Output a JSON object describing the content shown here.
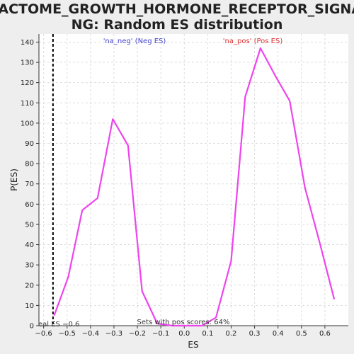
{
  "chart_data": {
    "type": "line",
    "title_lines": [
      "REACTOME_GROWTH_HORMONE_RECEPTOR_SIGNALI",
      "NG: Random ES distribution"
    ],
    "xlabel": "ES",
    "ylabel": "P(ES)",
    "xlim": [
      -0.62,
      0.7
    ],
    "ylim": [
      0,
      144
    ],
    "x_ticks": [
      -0.6,
      -0.5,
      -0.4,
      -0.3,
      -0.2,
      -0.1,
      0.0,
      0.1,
      0.2,
      0.3,
      0.4,
      0.5,
      0.6
    ],
    "x_tick_labels": [
      "−0.6",
      "−0.5",
      "−0.4",
      "−0.3",
      "−0.2",
      "−0.1",
      "0.0",
      "0.1",
      "0.2",
      "0.3",
      "0.4",
      "0.5",
      "0.6"
    ],
    "y_ticks": [
      0,
      10,
      20,
      30,
      40,
      50,
      60,
      70,
      80,
      90,
      100,
      110,
      120,
      130,
      140
    ],
    "y_tick_labels": [
      "0",
      "10",
      "20",
      "30",
      "40",
      "50",
      "60",
      "70",
      "80",
      "90",
      "100",
      "110",
      "120",
      "130",
      "140"
    ],
    "grid": true,
    "series": [
      {
        "color": "#ee44ee",
        "x": [
          -0.555,
          -0.495,
          -0.435,
          -0.37,
          -0.305,
          -0.24,
          -0.18,
          -0.115,
          -0.05,
          0.01,
          0.075,
          0.135,
          0.2,
          0.26,
          0.325,
          0.39,
          0.45,
          0.515,
          0.58,
          0.64
        ],
        "y": [
          5,
          24,
          57,
          63,
          102,
          89,
          17,
          1,
          0,
          0,
          0,
          4,
          32,
          113,
          137,
          123,
          111,
          68,
          40,
          13
        ]
      }
    ],
    "actual_es": {
      "x": -0.56,
      "label": "eal ES −0.6",
      "color": "#000000"
    },
    "legend": {
      "neg": {
        "text": "'na_neg' (Neg ES)",
        "color": "#4444cc"
      },
      "pos": {
        "text": "'na_pos' (Pos ES)",
        "color": "#dd3333"
      }
    },
    "footer_text": "Sets with pos scores: 64%"
  }
}
